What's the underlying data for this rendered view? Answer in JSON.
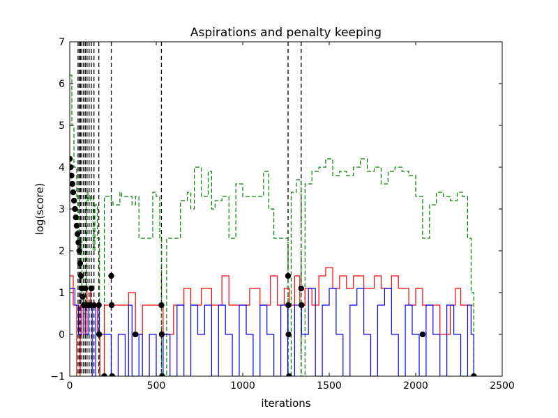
{
  "chart_data": {
    "type": "line",
    "title": "Aspirations and penalty keeping",
    "xlabel": "iterations",
    "ylabel": "log(score)",
    "xlim": [
      0,
      2500
    ],
    "ylim": [
      -1,
      7
    ],
    "xticks": [
      0,
      500,
      1000,
      1500,
      2000,
      2500
    ],
    "yticks": [
      -1,
      0,
      1,
      2,
      3,
      4,
      5,
      6,
      7
    ],
    "grid": false,
    "legend": "none",
    "colors": {
      "aspiration": "#008000",
      "best": "#ff0000",
      "current": "#0000ff",
      "marker": "#000000",
      "vline": "#000000"
    },
    "series": [
      {
        "style": "dashed",
        "color": "#008000",
        "points": [
          [
            0,
            6.2
          ],
          [
            12,
            5.0
          ],
          [
            24,
            4.0
          ],
          [
            40,
            3.3
          ],
          [
            55,
            2.3
          ],
          [
            70,
            1.0
          ],
          [
            80,
            0.5
          ],
          [
            95,
            3.4
          ],
          [
            105,
            3.2
          ],
          [
            120,
            3.3
          ],
          [
            135,
            2.0
          ],
          [
            145,
            3.1
          ],
          [
            160,
            2.3
          ],
          [
            172,
            -1.0
          ],
          [
            200,
            3.3
          ],
          [
            240,
            3.2
          ],
          [
            250,
            3.1
          ],
          [
            290,
            3.4
          ],
          [
            300,
            3.3
          ],
          [
            340,
            3.3
          ],
          [
            360,
            3.1
          ],
          [
            380,
            3.3
          ],
          [
            400,
            2.3
          ],
          [
            450,
            2.3
          ],
          [
            480,
            3.4
          ],
          [
            500,
            3.3
          ],
          [
            520,
            2.3
          ],
          [
            531,
            -1.0
          ],
          [
            560,
            2.3
          ],
          [
            600,
            2.3
          ],
          [
            640,
            3.2
          ],
          [
            680,
            3.4
          ],
          [
            700,
            3.0
          ],
          [
            720,
            4.0
          ],
          [
            760,
            3.3
          ],
          [
            800,
            3.9
          ],
          [
            820,
            3.0
          ],
          [
            840,
            3.2
          ],
          [
            880,
            3.3
          ],
          [
            920,
            2.3
          ],
          [
            960,
            3.6
          ],
          [
            1000,
            3.3
          ],
          [
            1040,
            3.3
          ],
          [
            1080,
            3.3
          ],
          [
            1120,
            3.9
          ],
          [
            1150,
            3.0
          ],
          [
            1180,
            2.3
          ],
          [
            1220,
            2.3
          ],
          [
            1262,
            -1.0
          ],
          [
            1280,
            3.4
          ],
          [
            1310,
            3.7
          ],
          [
            1338,
            -1.0
          ],
          [
            1360,
            3.6
          ],
          [
            1400,
            3.9
          ],
          [
            1440,
            4.0
          ],
          [
            1480,
            4.2
          ],
          [
            1520,
            3.8
          ],
          [
            1560,
            3.9
          ],
          [
            1600,
            3.8
          ],
          [
            1640,
            4.0
          ],
          [
            1680,
            4.2
          ],
          [
            1720,
            3.9
          ],
          [
            1760,
            4.0
          ],
          [
            1800,
            3.6
          ],
          [
            1840,
            3.9
          ],
          [
            1880,
            4.0
          ],
          [
            1920,
            3.9
          ],
          [
            1960,
            3.8
          ],
          [
            2000,
            3.3
          ],
          [
            2040,
            2.3
          ],
          [
            2080,
            3.1
          ],
          [
            2120,
            3.4
          ],
          [
            2160,
            3.3
          ],
          [
            2200,
            3.2
          ],
          [
            2240,
            3.4
          ],
          [
            2270,
            3.3
          ],
          [
            2300,
            2.3
          ],
          [
            2320,
            1.0
          ],
          [
            2336,
            -1.0
          ]
        ]
      },
      {
        "style": "solid",
        "color": "#ff0000",
        "points": [
          [
            0,
            1.4
          ],
          [
            20,
            0.7
          ],
          [
            40,
            -1.0
          ],
          [
            60,
            0.7
          ],
          [
            80,
            0.0
          ],
          [
            100,
            1.1
          ],
          [
            120,
            0.7
          ],
          [
            140,
            0.7
          ],
          [
            160,
            0.0
          ],
          [
            175,
            -1.0
          ],
          [
            200,
            0.7
          ],
          [
            240,
            0.7
          ],
          [
            300,
            0.7
          ],
          [
            340,
            1.0
          ],
          [
            380,
            0.0
          ],
          [
            420,
            0.7
          ],
          [
            500,
            0.7
          ],
          [
            520,
            0.7
          ],
          [
            540,
            0.0
          ],
          [
            600,
            0.7
          ],
          [
            660,
            1.1
          ],
          [
            700,
            0.7
          ],
          [
            760,
            1.1
          ],
          [
            820,
            0.7
          ],
          [
            880,
            1.4
          ],
          [
            920,
            0.7
          ],
          [
            1000,
            0.7
          ],
          [
            1040,
            1.1
          ],
          [
            1100,
            0.7
          ],
          [
            1160,
            1.4
          ],
          [
            1200,
            0.7
          ],
          [
            1240,
            1.1
          ],
          [
            1270,
            0.7
          ],
          [
            1300,
            1.4
          ],
          [
            1330,
            0.7
          ],
          [
            1360,
            1.1
          ],
          [
            1400,
            0.7
          ],
          [
            1440,
            1.4
          ],
          [
            1480,
            1.6
          ],
          [
            1520,
            1.1
          ],
          [
            1560,
            1.4
          ],
          [
            1600,
            1.1
          ],
          [
            1640,
            1.4
          ],
          [
            1700,
            1.1
          ],
          [
            1760,
            1.4
          ],
          [
            1800,
            1.1
          ],
          [
            1860,
            1.4
          ],
          [
            1900,
            1.1
          ],
          [
            1960,
            0.7
          ],
          [
            2000,
            1.1
          ],
          [
            2040,
            0.7
          ],
          [
            2100,
            0.7
          ],
          [
            2140,
            0.0
          ],
          [
            2200,
            0.7
          ],
          [
            2230,
            1.1
          ],
          [
            2260,
            0.7
          ],
          [
            2300,
            0.7
          ],
          [
            2330,
            0.7
          ]
        ]
      },
      {
        "style": "solid",
        "color": "#0000ff",
        "points": [
          [
            0,
            1.1
          ],
          [
            30,
            0.7
          ],
          [
            50,
            0.0
          ],
          [
            70,
            0.7
          ],
          [
            90,
            0.0
          ],
          [
            110,
            0.7
          ],
          [
            130,
            -1.0
          ],
          [
            150,
            0.7
          ],
          [
            170,
            0.0
          ],
          [
            200,
            0.0
          ],
          [
            240,
            -1.0
          ],
          [
            280,
            0.0
          ],
          [
            320,
            -1.0
          ],
          [
            340,
            0.7
          ],
          [
            360,
            -1.0
          ],
          [
            400,
            0.0
          ],
          [
            420,
            -1.0
          ],
          [
            460,
            0.0
          ],
          [
            500,
            -1.0
          ],
          [
            540,
            0.0
          ],
          [
            580,
            -1.0
          ],
          [
            620,
            0.7
          ],
          [
            660,
            -1.0
          ],
          [
            700,
            0.7
          ],
          [
            740,
            0.0
          ],
          [
            780,
            0.7
          ],
          [
            820,
            -1.0
          ],
          [
            860,
            0.7
          ],
          [
            900,
            0.0
          ],
          [
            940,
            -1.0
          ],
          [
            980,
            0.7
          ],
          [
            1020,
            0.0
          ],
          [
            1060,
            -1.0
          ],
          [
            1100,
            0.7
          ],
          [
            1140,
            0.0
          ],
          [
            1180,
            -1.0
          ],
          [
            1220,
            0.7
          ],
          [
            1260,
            -1.0
          ],
          [
            1300,
            0.7
          ],
          [
            1340,
            0.0
          ],
          [
            1380,
            1.1
          ],
          [
            1420,
            -1.0
          ],
          [
            1460,
            0.7
          ],
          [
            1500,
            1.1
          ],
          [
            1540,
            0.0
          ],
          [
            1580,
            -1.0
          ],
          [
            1620,
            0.7
          ],
          [
            1660,
            1.1
          ],
          [
            1700,
            0.0
          ],
          [
            1740,
            -1.0
          ],
          [
            1780,
            0.7
          ],
          [
            1820,
            1.1
          ],
          [
            1860,
            0.0
          ],
          [
            1900,
            -1.0
          ],
          [
            1940,
            0.7
          ],
          [
            1980,
            0.0
          ],
          [
            2020,
            -1.0
          ],
          [
            2060,
            0.7
          ],
          [
            2100,
            0.0
          ],
          [
            2140,
            -1.0
          ],
          [
            2180,
            0.7
          ],
          [
            2220,
            0.0
          ],
          [
            2260,
            -1.0
          ],
          [
            2300,
            0.7
          ],
          [
            2320,
            0.0
          ],
          [
            2336,
            -1.0
          ]
        ]
      }
    ],
    "vlines": [
      48,
      55,
      62,
      70,
      80,
      90,
      100,
      112,
      125,
      140,
      168,
      240,
      530,
      1262,
      1338
    ],
    "markers": [
      [
        0,
        4.2
      ],
      [
        5,
        4.0
      ],
      [
        10,
        3.8
      ],
      [
        15,
        3.6
      ],
      [
        20,
        3.4
      ],
      [
        25,
        3.2
      ],
      [
        30,
        3.0
      ],
      [
        35,
        2.8
      ],
      [
        40,
        2.6
      ],
      [
        45,
        2.4
      ],
      [
        50,
        2.2
      ],
      [
        55,
        2.0
      ],
      [
        60,
        1.7
      ],
      [
        65,
        1.4
      ],
      [
        70,
        1.1
      ],
      [
        75,
        0.9
      ],
      [
        80,
        0.7
      ],
      [
        90,
        1.1
      ],
      [
        100,
        0.7
      ],
      [
        110,
        0.7
      ],
      [
        120,
        0.7
      ],
      [
        125,
        1.1
      ],
      [
        140,
        0.7
      ],
      [
        168,
        0.7
      ],
      [
        170,
        0.0
      ],
      [
        200,
        -1.0
      ],
      [
        240,
        1.4
      ],
      [
        242,
        0.7
      ],
      [
        245,
        -1.0
      ],
      [
        380,
        0.0
      ],
      [
        530,
        0.7
      ],
      [
        532,
        0.0
      ],
      [
        534,
        -1.0
      ],
      [
        1262,
        1.4
      ],
      [
        1263,
        0.7
      ],
      [
        1265,
        0.0
      ],
      [
        1268,
        -1.0
      ],
      [
        1338,
        1.1
      ],
      [
        1340,
        0.7
      ],
      [
        2040,
        0.0
      ],
      [
        2336,
        -1.0
      ]
    ]
  }
}
